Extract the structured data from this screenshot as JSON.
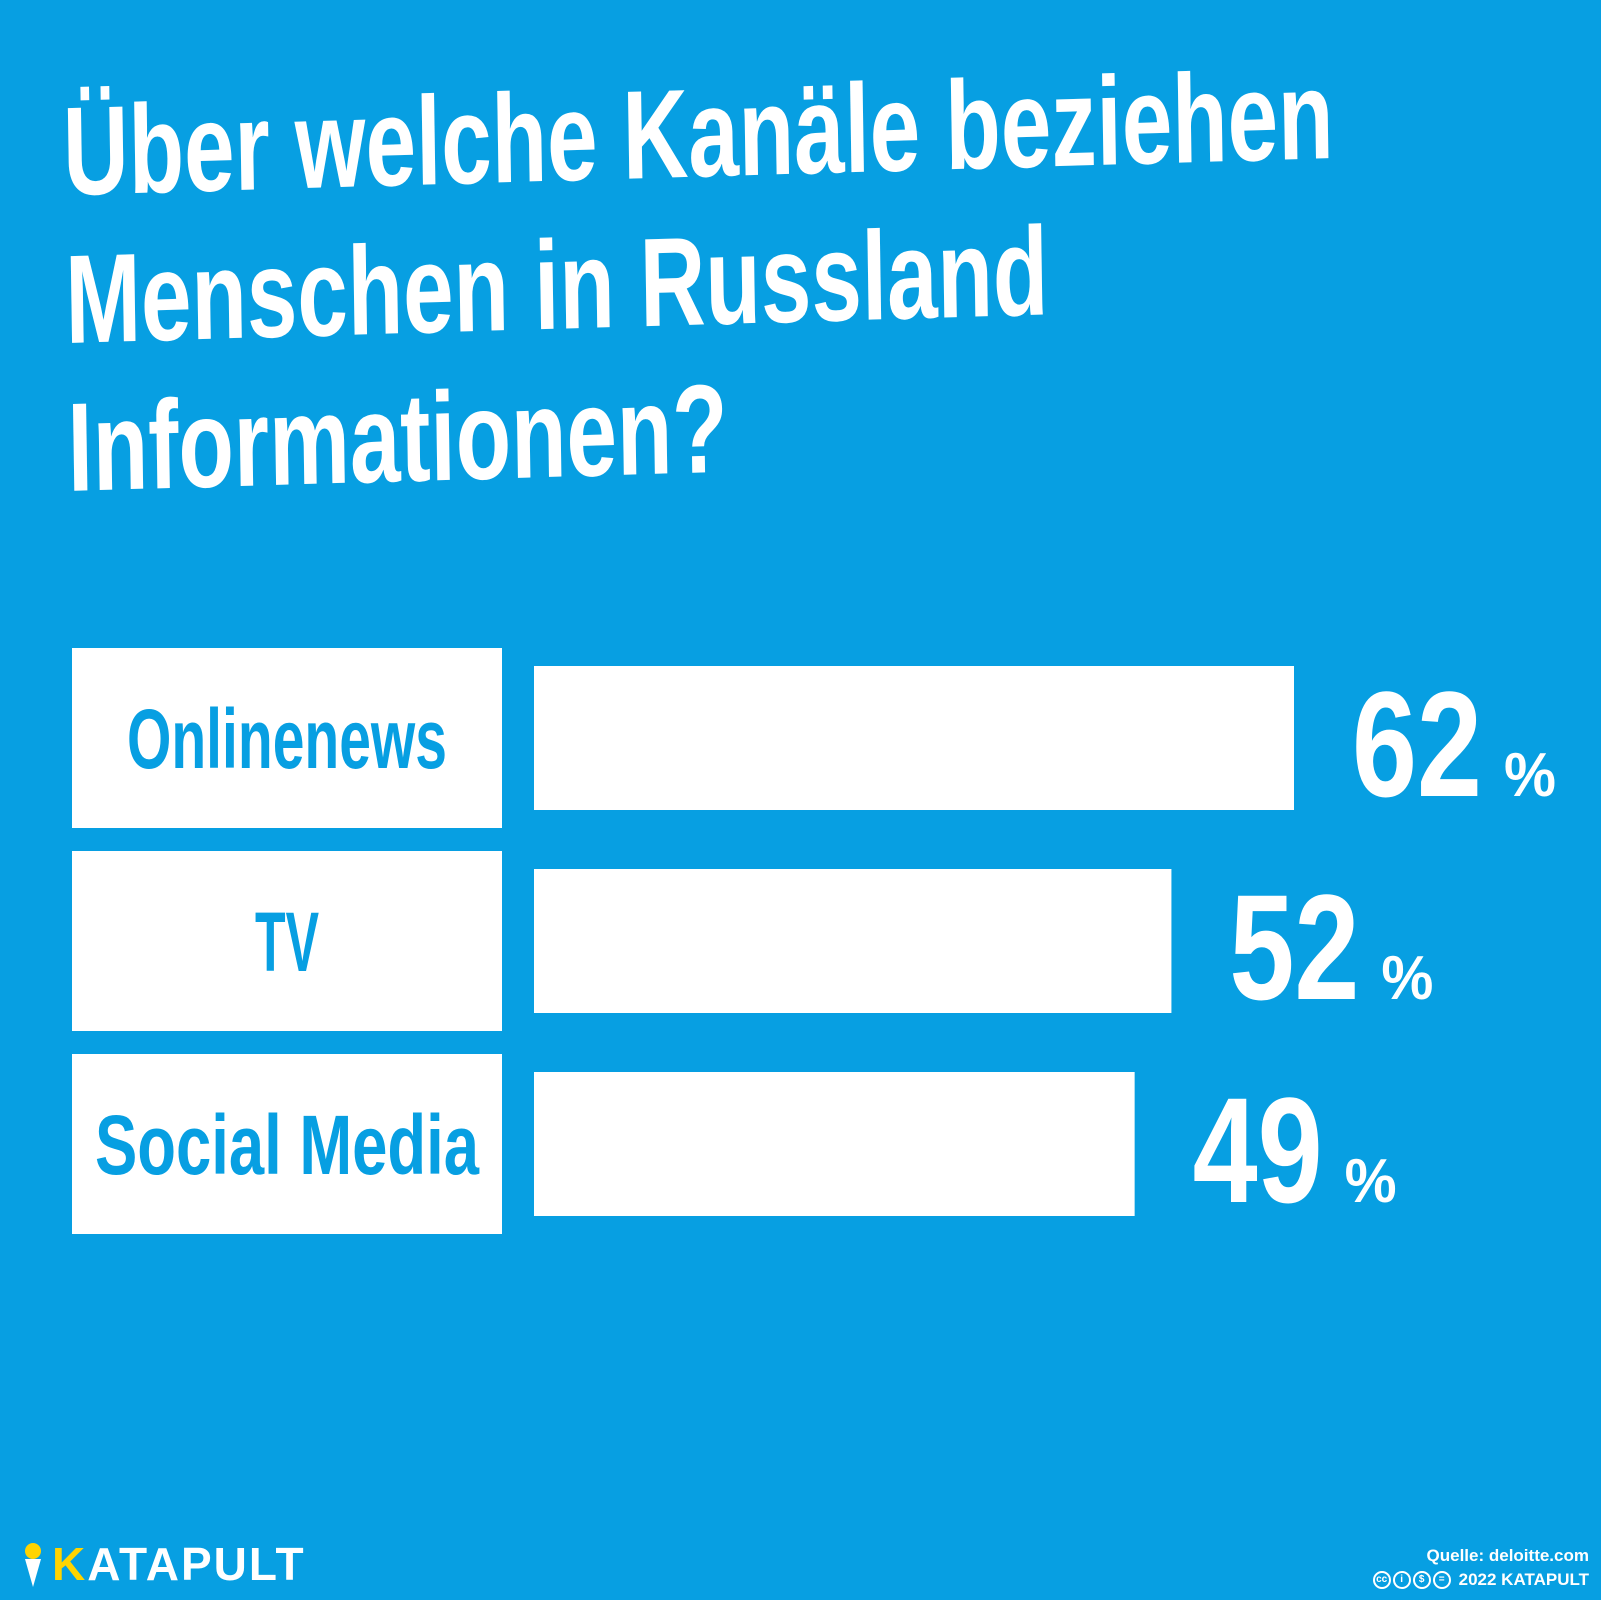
{
  "title_lines": [
    "Über welche Kanäle beziehen",
    "Menschen in Russland",
    "Informationen?"
  ],
  "chart_data": {
    "type": "bar",
    "orientation": "horizontal",
    "title": "Über welche Kanäle beziehen Menschen in Russland Informationen?",
    "categories": [
      "Onlinenews",
      "TV",
      "Social Media"
    ],
    "values": [
      62,
      52,
      49
    ],
    "unit": "%",
    "xlim": [
      0,
      62
    ],
    "grid": false,
    "legend": "none"
  },
  "colors": {
    "background": "#079fe2",
    "bar": "#ffffff",
    "label_box": "#ffffff",
    "label_text": "#079fe2",
    "logo_accent": "#ffd400"
  },
  "branding": {
    "logo_k": "K",
    "logo_rest": "ATAPULT",
    "logo_icon": "katapult-icon"
  },
  "footer": {
    "source": "Quelle: deloitte.com",
    "cc_icons": [
      "cc-icon",
      "by-icon",
      "nc-icon",
      "nd-icon"
    ],
    "copyright": "2022 KATAPULT"
  }
}
